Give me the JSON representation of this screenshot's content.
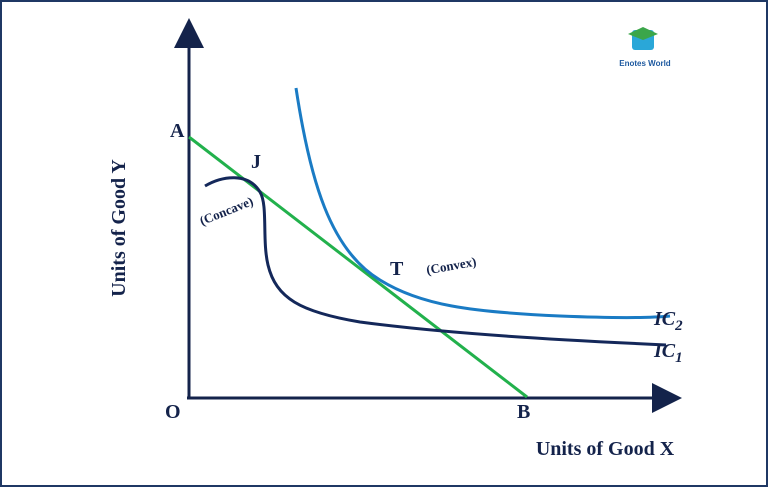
{
  "title_logo": "Enotes World",
  "axes": {
    "y_label": "Units of Good Y",
    "x_label": "Units of Good X",
    "origin": "O"
  },
  "points": {
    "a": "A",
    "b": "B",
    "j": "J",
    "t": "T"
  },
  "annotations": {
    "concave": "(Concave)",
    "convex": "(Convex)"
  },
  "curves": {
    "ic2": {
      "name": "IC",
      "sub": "2"
    },
    "ic1": {
      "name": "IC",
      "sub": "1"
    }
  }
}
